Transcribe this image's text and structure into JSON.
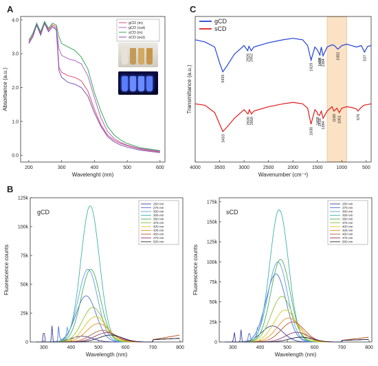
{
  "figure": {
    "panel_labels": [
      "A",
      "B",
      "C"
    ],
    "colors": {
      "gCD": "#1f3fd8",
      "sCD": "#e01818",
      "band": "#fbe2c4"
    }
  },
  "chart_data": [
    {
      "id": "A",
      "type": "line",
      "xlabel": "Wavelenght (nm)",
      "ylabel": "Absorbance (a.u.)",
      "xlim": [
        175,
        615
      ],
      "ylim": [
        -0.2,
        4.1
      ],
      "xticks": [
        200,
        300,
        400,
        500,
        600
      ],
      "yticks": [
        0.0,
        1.0,
        2.0,
        3.0,
        4.0
      ],
      "yticklabels": [
        "0.0",
        "1.0",
        "2.0",
        "3.0",
        "4.0"
      ],
      "legend": "top-right",
      "series": [
        {
          "name": "gCD (in)",
          "color": "#d94a6a",
          "x": [
            200,
            212,
            224,
            236,
            248,
            260,
            272,
            284,
            292,
            300,
            320,
            340,
            360,
            380,
            400,
            420,
            440,
            460,
            480,
            500,
            540,
            600
          ],
          "y": [
            3.35,
            3.55,
            3.9,
            3.6,
            3.95,
            3.7,
            3.85,
            3.8,
            2.6,
            2.45,
            2.35,
            2.3,
            2.2,
            1.9,
            1.35,
            0.9,
            0.6,
            0.45,
            0.35,
            0.28,
            0.18,
            0.1
          ]
        },
        {
          "name": "gCD (out)",
          "color": "#b265c4",
          "x": [
            200,
            212,
            224,
            236,
            248,
            260,
            272,
            284,
            292,
            300,
            320,
            340,
            360,
            380,
            400,
            420,
            440,
            460,
            480,
            500,
            540,
            600
          ],
          "y": [
            3.3,
            3.5,
            3.85,
            3.55,
            3.9,
            3.65,
            3.8,
            3.75,
            3.15,
            2.95,
            2.85,
            2.8,
            2.7,
            2.35,
            1.7,
            1.1,
            0.7,
            0.5,
            0.38,
            0.3,
            0.2,
            0.12
          ]
        },
        {
          "name": "sCD (in)",
          "color": "#35a855",
          "x": [
            200,
            212,
            224,
            236,
            248,
            260,
            272,
            284,
            292,
            300,
            320,
            340,
            360,
            380,
            400,
            420,
            440,
            460,
            480,
            500,
            540,
            600
          ],
          "y": [
            3.4,
            3.6,
            3.9,
            3.65,
            3.95,
            3.75,
            3.9,
            3.85,
            3.5,
            3.3,
            3.2,
            3.1,
            2.9,
            2.55,
            1.85,
            1.3,
            0.85,
            0.6,
            0.45,
            0.35,
            0.22,
            0.14
          ]
        },
        {
          "name": "sCD (out)",
          "color": "#7a4fb8",
          "x": [
            200,
            212,
            224,
            236,
            248,
            260,
            272,
            284,
            292,
            300,
            320,
            340,
            360,
            380,
            400,
            420,
            440,
            460,
            480,
            500,
            540,
            600
          ],
          "y": [
            3.3,
            3.5,
            3.85,
            3.55,
            3.9,
            3.65,
            3.8,
            3.7,
            2.5,
            2.3,
            2.15,
            2.1,
            2.0,
            1.75,
            1.25,
            0.85,
            0.55,
            0.4,
            0.3,
            0.24,
            0.15,
            0.08
          ]
        }
      ]
    },
    {
      "id": "C",
      "type": "line",
      "xlabel": "Wavenumber (cm⁻¹)",
      "ylabel": "Transmittance (a.u.)",
      "xlim": [
        4000,
        400
      ],
      "ylim": [
        0,
        100
      ],
      "xticks": [
        4000,
        3500,
        3000,
        2500,
        2000,
        1500,
        1000,
        500
      ],
      "shaded_band": [
        1300,
        900
      ],
      "legend": "top-left",
      "series": [
        {
          "name": "gCD",
          "color": "#1f3fd8",
          "x": [
            4000,
            3800,
            3600,
            3500,
            3435,
            3350,
            3200,
            3000,
            2926,
            2900,
            2852,
            2800,
            2500,
            2200,
            2000,
            1800,
            1700,
            1629,
            1550,
            1500,
            1449,
            1420,
            1384,
            1300,
            1200,
            1150,
            1082,
            1000,
            900,
            800,
            700,
            600,
            537,
            470,
            400
          ],
          "y": [
            84,
            82.5,
            79,
            68,
            62,
            66,
            74,
            80,
            76.5,
            79.5,
            76.5,
            79,
            82,
            84,
            85,
            84,
            80,
            70,
            79,
            77,
            73.5,
            79,
            73,
            79,
            80.5,
            80,
            77.5,
            80,
            81,
            80,
            79,
            80,
            75.5,
            79.5,
            80
          ]
        },
        {
          "name": "sCD",
          "color": "#e01818",
          "x": [
            4000,
            3800,
            3600,
            3500,
            3435,
            3350,
            3200,
            3000,
            2920,
            2890,
            2850,
            2800,
            2500,
            2200,
            2000,
            1800,
            1700,
            1630,
            1550,
            1500,
            1499,
            1458,
            1420,
            1384,
            1300,
            1200,
            1160,
            1100,
            1051,
            1000,
            900,
            800,
            700,
            670,
            620,
            550,
            400
          ],
          "y": [
            40,
            39,
            34,
            26,
            21,
            24,
            30,
            36,
            33,
            36,
            33,
            35,
            38,
            40,
            41,
            40,
            37,
            26,
            36,
            34,
            33,
            32,
            35,
            30,
            35,
            38,
            35,
            37,
            34,
            37,
            38,
            37.5,
            36.5,
            35,
            37,
            39,
            40
          ]
        }
      ],
      "annotations": {
        "gCD": [
          {
            "x": 3435,
            "label": "3435"
          },
          {
            "x": 2926,
            "label": "2926"
          },
          {
            "x": 2852,
            "label": "2852"
          },
          {
            "x": 1629,
            "label": "1629"
          },
          {
            "x": 1449,
            "label": "1449"
          },
          {
            "x": 1458,
            "label": "1458"
          },
          {
            "x": 1384,
            "label": "1384"
          },
          {
            "x": 1082,
            "label": "1082"
          },
          {
            "x": 537,
            "label": "537"
          }
        ],
        "sCD": [
          {
            "x": 3433,
            "label": "3433"
          },
          {
            "x": 2920,
            "label": "2920"
          },
          {
            "x": 2850,
            "label": "2850"
          },
          {
            "x": 1630,
            "label": "1630"
          },
          {
            "x": 1499,
            "label": "1499"
          },
          {
            "x": 1458,
            "label": "1458"
          },
          {
            "x": 1384,
            "label": "1384"
          },
          {
            "x": 1160,
            "label": "1160"
          },
          {
            "x": 1051,
            "label": "1051"
          },
          {
            "x": 670,
            "label": "670"
          }
        ]
      }
    },
    {
      "id": "B-gCD",
      "type": "line",
      "title": "gCD",
      "xlabel": "Wavelength (nm)",
      "ylabel": "Fluorescence counts",
      "xlim": [
        250,
        810
      ],
      "ylim": [
        0,
        125000
      ],
      "xticks": [
        300,
        400,
        500,
        600,
        700,
        800
      ],
      "yticks": [
        0,
        25000,
        50000,
        75000,
        100000,
        125000
      ],
      "yticklabels": [
        "0",
        "25k",
        "50k",
        "75k",
        "100k",
        "125k"
      ],
      "legend": "top-right",
      "series": [
        {
          "name": "250 nm",
          "color": "#3a3aa0",
          "peak": 440,
          "height": 5000,
          "width": 55,
          "spikes": [
            [
              300,
              14000
            ],
            [
              330,
              14000
            ]
          ]
        },
        {
          "name": "275 nm",
          "color": "#4f6fd6",
          "peak": 455,
          "height": 40000,
          "width": 52,
          "spikes": [
            [
              355,
              15000
            ]
          ]
        },
        {
          "name": "300 nm",
          "color": "#5aa0e0",
          "peak": 462,
          "height": 63000,
          "width": 50,
          "spikes": [
            [
              385,
              8000
            ]
          ]
        },
        {
          "name": "325 nm",
          "color": "#3fb3a8",
          "peak": 470,
          "height": 118000,
          "width": 48,
          "spikes": []
        },
        {
          "name": "350 nm",
          "color": "#4aab5a",
          "peak": 472,
          "height": 63000,
          "width": 50,
          "spikes": []
        },
        {
          "name": "375 nm",
          "color": "#8ac43a",
          "peak": 480,
          "height": 30000,
          "width": 55,
          "spikes": []
        },
        {
          "name": "400 nm",
          "color": "#d9c51f",
          "peak": 490,
          "height": 22000,
          "width": 58,
          "spikes": []
        },
        {
          "name": "425 nm",
          "color": "#e8901e",
          "peak": 500,
          "height": 16000,
          "width": 60,
          "spikes": []
        },
        {
          "name": "450 nm",
          "color": "#b85a2a",
          "peak": 515,
          "height": 10000,
          "width": 60,
          "spikes": []
        },
        {
          "name": "475 nm",
          "color": "#8a3a6a",
          "peak": 530,
          "height": 8000,
          "width": 60,
          "spikes": []
        },
        {
          "name": "500 nm",
          "color": "#222244",
          "peak": 545,
          "height": 6000,
          "width": 60,
          "spikes": []
        }
      ]
    },
    {
      "id": "B-sCD",
      "type": "line",
      "title": "sCD",
      "xlabel": "Wavelength (nm)",
      "ylabel": "Fluorescence counts",
      "xlim": [
        250,
        810
      ],
      "ylim": [
        0,
        180000
      ],
      "xticks": [
        300,
        400,
        500,
        600,
        700,
        800
      ],
      "yticks": [
        0,
        25000,
        50000,
        75000,
        100000,
        125000,
        150000,
        175000
      ],
      "yticklabels": [
        "0",
        "25k",
        "50k",
        "75k",
        "100k",
        "125k",
        "150k",
        "175k"
      ],
      "legend": "top-right",
      "series": [
        {
          "name": "250 nm",
          "color": "#3a3aa0",
          "peak": 445,
          "height": 20000,
          "width": 55,
          "spikes": [
            [
              305,
              14000
            ],
            [
              330,
              15000
            ]
          ]
        },
        {
          "name": "275 nm",
          "color": "#4f6fd6",
          "peak": 458,
          "height": 85000,
          "width": 52,
          "spikes": [
            [
              360,
              15000
            ]
          ]
        },
        {
          "name": "300 nm",
          "color": "#5aa0e0",
          "peak": 465,
          "height": 100000,
          "width": 50,
          "spikes": [
            [
              390,
              8000
            ]
          ]
        },
        {
          "name": "325 nm",
          "color": "#3fb3a8",
          "peak": 470,
          "height": 165000,
          "width": 48,
          "spikes": []
        },
        {
          "name": "350 nm",
          "color": "#4aab5a",
          "peak": 475,
          "height": 103000,
          "width": 50,
          "spikes": []
        },
        {
          "name": "375 nm",
          "color": "#8ac43a",
          "peak": 480,
          "height": 57000,
          "width": 55,
          "spikes": []
        },
        {
          "name": "400 nm",
          "color": "#d9c51f",
          "peak": 492,
          "height": 40000,
          "width": 58,
          "spikes": []
        },
        {
          "name": "425 nm",
          "color": "#e8901e",
          "peak": 505,
          "height": 30000,
          "width": 60,
          "spikes": []
        },
        {
          "name": "450 nm",
          "color": "#b85a2a",
          "peak": 520,
          "height": 25000,
          "width": 60,
          "spikes": []
        },
        {
          "name": "475 nm",
          "color": "#8a3a6a",
          "peak": 535,
          "height": 12000,
          "width": 60,
          "spikes": []
        },
        {
          "name": "500 nm",
          "color": "#222244",
          "peak": 550,
          "height": 6000,
          "width": 60,
          "spikes": []
        }
      ]
    }
  ]
}
